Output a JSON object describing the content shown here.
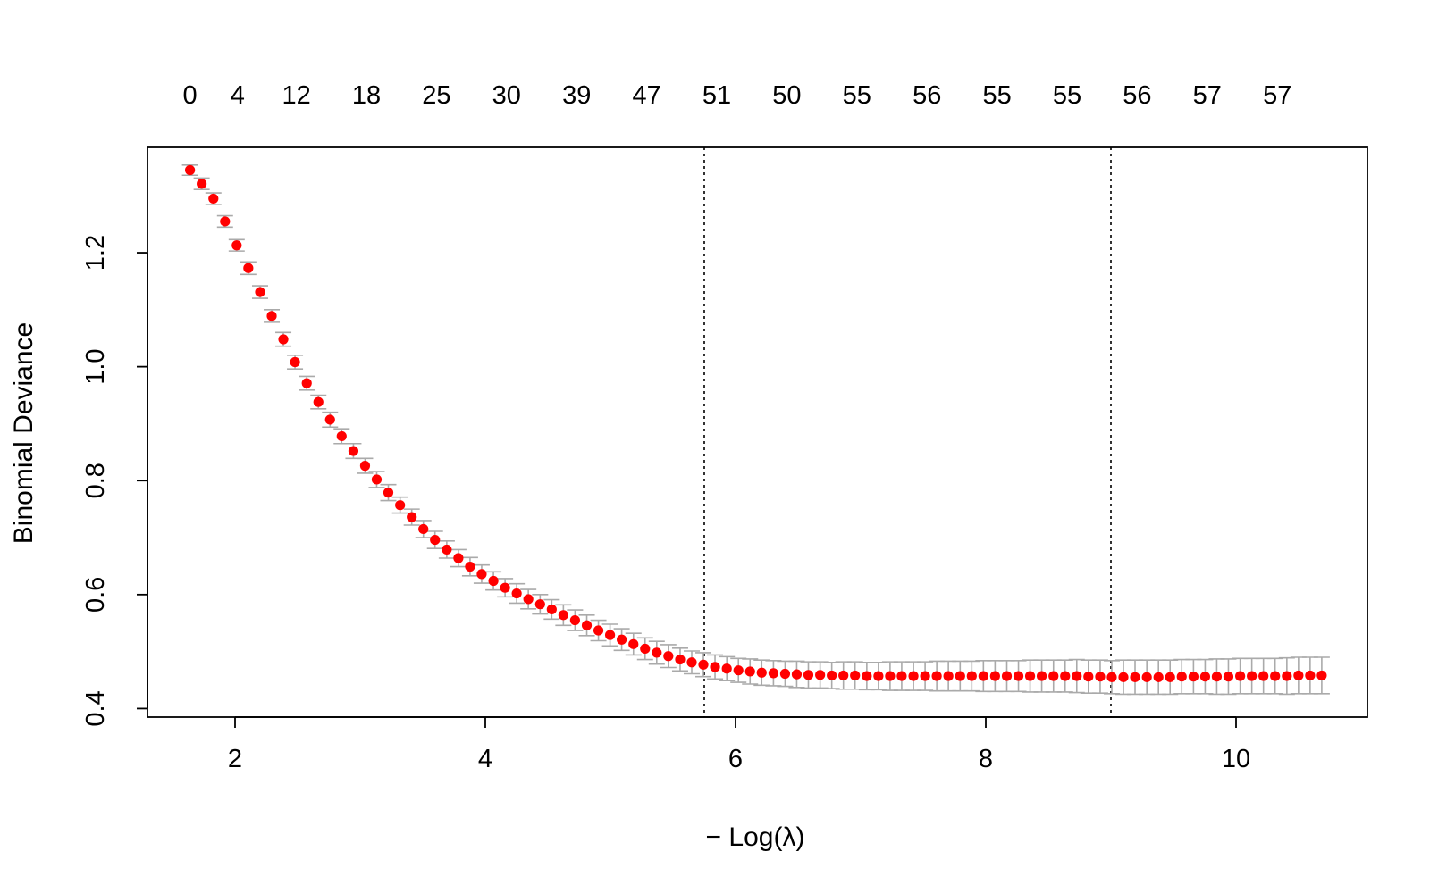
{
  "chart_data": {
    "type": "scatter",
    "title": "",
    "xlabel": "− Log(λ)",
    "ylabel": "Binomial Deviance",
    "xlim": [
      1.3,
      11.05
    ],
    "ylim": [
      0.385,
      1.385
    ],
    "x_ticks": [
      2,
      4,
      6,
      8,
      10
    ],
    "y_ticks": [
      0.4,
      0.6,
      0.8,
      1.0,
      1.2
    ],
    "y_tick_labels": [
      "0.4",
      "0.6",
      "0.8",
      "1.0",
      "1.2"
    ],
    "grid": false,
    "legend": "none",
    "colors": {
      "points": "#ff0000",
      "error_bars": "#aaaaaa",
      "reference_lines": "#000000"
    },
    "top_axis": {
      "positions": [
        1.64,
        2.02,
        2.49,
        3.05,
        3.61,
        4.17,
        4.73,
        5.29,
        5.85,
        6.41,
        6.97,
        7.53,
        8.09,
        8.65,
        9.21,
        9.77,
        10.33
      ],
      "labels": [
        "0",
        "4",
        "12",
        "18",
        "25",
        "30",
        "39",
        "47",
        "51",
        "50",
        "55",
        "56",
        "55",
        "55",
        "56",
        "57",
        "57"
      ]
    },
    "vlines": [
      5.75,
      9.0
    ],
    "series": [
      {
        "x": [
          1.64,
          1.733,
          1.827,
          1.92,
          2.013,
          2.106,
          2.2,
          2.293,
          2.386,
          2.479,
          2.573,
          2.666,
          2.759,
          2.852,
          2.946,
          3.039,
          3.132,
          3.225,
          3.319,
          3.412,
          3.505,
          3.598,
          3.692,
          3.785,
          3.878,
          3.971,
          4.065,
          4.158,
          4.251,
          4.344,
          4.438,
          4.531,
          4.624,
          4.717,
          4.811,
          4.904,
          4.997,
          5.09,
          5.184,
          5.277,
          5.37,
          5.463,
          5.557,
          5.65,
          5.743,
          5.836,
          5.93,
          6.023,
          6.116,
          6.209,
          6.303,
          6.396,
          6.489,
          6.582,
          6.676,
          6.769,
          6.862,
          6.955,
          7.049,
          7.142,
          7.235,
          7.328,
          7.422,
          7.515,
          7.608,
          7.701,
          7.795,
          7.888,
          7.981,
          8.074,
          8.168,
          8.261,
          8.354,
          8.447,
          8.541,
          8.634,
          8.727,
          8.82,
          8.914,
          9.007,
          9.1,
          9.193,
          9.287,
          9.38,
          9.473,
          9.566,
          9.66,
          9.753,
          9.846,
          9.939,
          10.033,
          10.126,
          10.219,
          10.312,
          10.406,
          10.499,
          10.592,
          10.685
        ],
        "y": [
          1.345,
          1.321,
          1.295,
          1.255,
          1.213,
          1.173,
          1.131,
          1.089,
          1.048,
          1.008,
          0.971,
          0.938,
          0.907,
          0.878,
          0.852,
          0.826,
          0.802,
          0.779,
          0.757,
          0.736,
          0.715,
          0.696,
          0.679,
          0.664,
          0.649,
          0.636,
          0.624,
          0.612,
          0.602,
          0.592,
          0.583,
          0.574,
          0.564,
          0.555,
          0.546,
          0.537,
          0.529,
          0.521,
          0.513,
          0.505,
          0.498,
          0.492,
          0.486,
          0.481,
          0.477,
          0.473,
          0.47,
          0.467,
          0.465,
          0.463,
          0.462,
          0.461,
          0.46,
          0.459,
          0.459,
          0.458,
          0.458,
          0.458,
          0.457,
          0.457,
          0.457,
          0.457,
          0.457,
          0.457,
          0.457,
          0.457,
          0.457,
          0.457,
          0.457,
          0.457,
          0.457,
          0.457,
          0.457,
          0.457,
          0.457,
          0.457,
          0.457,
          0.456,
          0.456,
          0.455,
          0.455,
          0.455,
          0.455,
          0.455,
          0.455,
          0.456,
          0.456,
          0.456,
          0.456,
          0.456,
          0.457,
          0.457,
          0.457,
          0.457,
          0.457,
          0.458,
          0.458,
          0.458
        ],
        "se": [
          0.009,
          0.01,
          0.01,
          0.01,
          0.01,
          0.011,
          0.011,
          0.011,
          0.012,
          0.012,
          0.012,
          0.012,
          0.013,
          0.013,
          0.013,
          0.013,
          0.014,
          0.014,
          0.014,
          0.014,
          0.015,
          0.015,
          0.015,
          0.015,
          0.016,
          0.016,
          0.016,
          0.016,
          0.017,
          0.017,
          0.017,
          0.017,
          0.018,
          0.018,
          0.018,
          0.018,
          0.019,
          0.019,
          0.019,
          0.019,
          0.02,
          0.02,
          0.02,
          0.02,
          0.021,
          0.021,
          0.021,
          0.021,
          0.022,
          0.022,
          0.022,
          0.022,
          0.023,
          0.023,
          0.023,
          0.023,
          0.024,
          0.024,
          0.024,
          0.024,
          0.025,
          0.025,
          0.025,
          0.025,
          0.026,
          0.026,
          0.026,
          0.026,
          0.027,
          0.027,
          0.027,
          0.027,
          0.028,
          0.028,
          0.028,
          0.028,
          0.029,
          0.029,
          0.029,
          0.029,
          0.03,
          0.03,
          0.03,
          0.03,
          0.03,
          0.03,
          0.03,
          0.03,
          0.031,
          0.031,
          0.031,
          0.031,
          0.031,
          0.031,
          0.032,
          0.032,
          0.032,
          0.032
        ]
      }
    ]
  }
}
